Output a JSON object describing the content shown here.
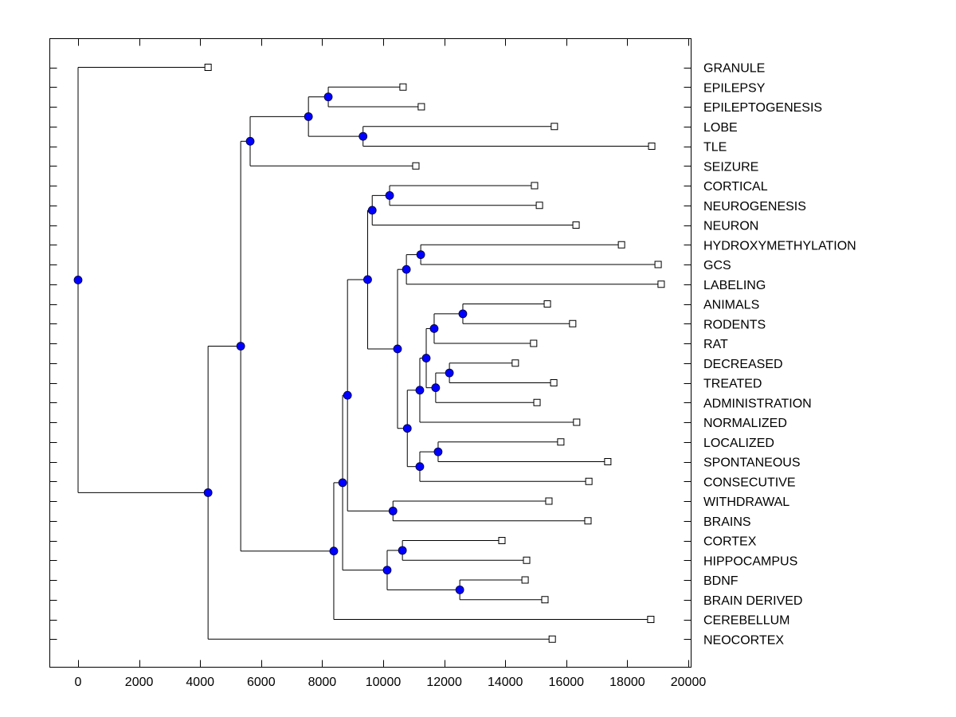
{
  "chart_data": {
    "type": "dendrogram",
    "title": "",
    "xlabel": "",
    "ylabel": "",
    "xlim": [
      -900,
      20100
    ],
    "xticks": [
      0,
      2000,
      4000,
      6000,
      8000,
      10000,
      12000,
      14000,
      16000,
      18000,
      20000
    ],
    "xtick_labels": [
      "0",
      "2000",
      "4000",
      "6000",
      "8000",
      "10000",
      "12000",
      "14000",
      "16000",
      "18000",
      "20000"
    ],
    "grid": false,
    "colors": {
      "node_fill": "#0000ff",
      "line": "#000000",
      "leaf_fill": "#ffffff"
    },
    "leaves": [
      {
        "label": "GRANULE",
        "x": 4260
      },
      {
        "label": "EPILEPSY",
        "x": 10650
      },
      {
        "label": "EPILEPTOGENESIS",
        "x": 11250
      },
      {
        "label": "LOBE",
        "x": 15610
      },
      {
        "label": "TLE",
        "x": 18800
      },
      {
        "label": "SEIZURE",
        "x": 11070
      },
      {
        "label": "CORTICAL",
        "x": 14960
      },
      {
        "label": "NEUROGENESIS",
        "x": 15120
      },
      {
        "label": "NEURON",
        "x": 16320
      },
      {
        "label": "HYDROXYMETHYLATION",
        "x": 17810
      },
      {
        "label": "GCS",
        "x": 19010
      },
      {
        "label": "LABELING",
        "x": 19110
      },
      {
        "label": "ANIMALS",
        "x": 15380
      },
      {
        "label": "RODENTS",
        "x": 16210
      },
      {
        "label": "RAT",
        "x": 14930
      },
      {
        "label": "DECREASED",
        "x": 14330
      },
      {
        "label": "TREATED",
        "x": 15590
      },
      {
        "label": "ADMINISTRATION",
        "x": 15040
      },
      {
        "label": "NORMALIZED",
        "x": 16340
      },
      {
        "label": "LOCALIZED",
        "x": 15820
      },
      {
        "label": "SPONTANEOUS",
        "x": 17360
      },
      {
        "label": "CONSECUTIVE",
        "x": 16740
      },
      {
        "label": "WITHDRAWAL",
        "x": 15430
      },
      {
        "label": "BRAINS",
        "x": 16710
      },
      {
        "label": "CORTEX",
        "x": 13890
      },
      {
        "label": "HIPPOCAMPUS",
        "x": 14700
      },
      {
        "label": "BDNF",
        "x": 14650
      },
      {
        "label": "BRAIN DERIVED",
        "x": 15300
      },
      {
        "label": "CEREBELLUM",
        "x": 18770
      },
      {
        "label": "NEOCORTEX",
        "x": 15540
      }
    ],
    "tree": {
      "x": 0,
      "children": [
        {
          "leaf": 0
        },
        {
          "x": 4260,
          "children": [
            {
              "x": 5330,
              "children": [
                {
                  "x": 5640,
                  "children": [
                    {
                      "x": 7550,
                      "children": [
                        {
                          "x": 8200,
                          "children": [
                            {
                              "leaf": 1
                            },
                            {
                              "leaf": 2
                            }
                          ]
                        },
                        {
                          "x": 9340,
                          "children": [
                            {
                              "leaf": 3
                            },
                            {
                              "leaf": 4
                            }
                          ]
                        }
                      ]
                    },
                    {
                      "leaf": 5
                    }
                  ]
                },
                {
                  "x": 8380,
                  "children": [
                    {
                      "x": 8670,
                      "children": [
                        {
                          "x": 8830,
                          "children": [
                            {
                              "x": 9490,
                              "children": [
                                {
                                  "x": 9640,
                                  "children": [
                                    {
                                      "x": 10210,
                                      "children": [
                                        {
                                          "leaf": 6
                                        },
                                        {
                                          "leaf": 7
                                        }
                                      ]
                                    },
                                    {
                                      "leaf": 8
                                    }
                                  ]
                                },
                                {
                                  "x": 10470,
                                  "children": [
                                    {
                                      "x": 10760,
                                      "children": [
                                        {
                                          "x": 11230,
                                          "children": [
                                            {
                                              "leaf": 9
                                            },
                                            {
                                              "leaf": 10
                                            }
                                          ]
                                        },
                                        {
                                          "leaf": 11
                                        }
                                      ]
                                    },
                                    {
                                      "x": 10790,
                                      "children": [
                                        {
                                          "x": 11200,
                                          "children": [
                                            {
                                              "x": 11410,
                                              "children": [
                                                {
                                                  "x": 11670,
                                                  "children": [
                                                    {
                                                      "x": 12610,
                                                      "children": [
                                                        {
                                                          "leaf": 12
                                                        },
                                                        {
                                                          "leaf": 13
                                                        }
                                                      ]
                                                    },
                                                    {
                                                      "leaf": 14
                                                    }
                                                  ]
                                                },
                                                {
                                                  "x": 11720,
                                                  "children": [
                                                    {
                                                      "x": 12170,
                                                      "children": [
                                                        {
                                                          "leaf": 15
                                                        },
                                                        {
                                                          "leaf": 16
                                                        }
                                                      ]
                                                    },
                                                    {
                                                      "leaf": 17
                                                    }
                                                  ]
                                                }
                                              ]
                                            },
                                            {
                                              "leaf": 18
                                            }
                                          ]
                                        },
                                        {
                                          "x": 11200,
                                          "children": [
                                            {
                                              "x": 11800,
                                              "children": [
                                                {
                                                  "leaf": 19
                                                },
                                                {
                                                  "leaf": 20
                                                }
                                              ]
                                            },
                                            {
                                              "leaf": 21
                                            }
                                          ]
                                        }
                                      ]
                                    }
                                  ]
                                }
                              ]
                            },
                            {
                              "x": 10320,
                              "children": [
                                {
                                  "leaf": 22
                                },
                                {
                                  "leaf": 23
                                }
                              ]
                            }
                          ]
                        },
                        {
                          "x": 10130,
                          "children": [
                            {
                              "x": 10630,
                              "children": [
                                {
                                  "leaf": 24
                                },
                                {
                                  "leaf": 25
                                }
                              ]
                            },
                            {
                              "x": 12510,
                              "children": [
                                {
                                  "leaf": 26
                                },
                                {
                                  "leaf": 27
                                }
                              ]
                            }
                          ]
                        }
                      ]
                    },
                    {
                      "leaf": 28
                    }
                  ]
                }
              ]
            },
            {
              "leaf": 29
            }
          ]
        }
      ]
    }
  }
}
